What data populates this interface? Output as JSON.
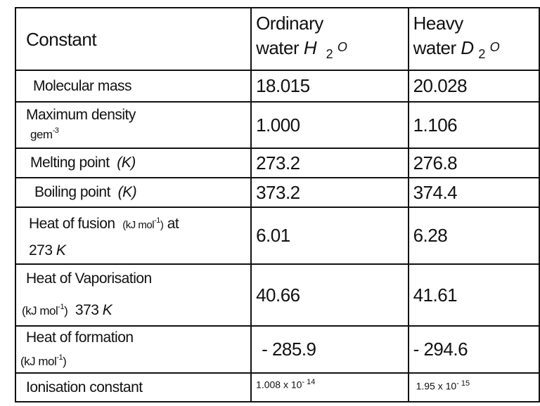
{
  "header": {
    "constant": "Constant",
    "ordinary_line1": "Ordinary",
    "ordinary_line2": "water",
    "ordinary_symbol": "H",
    "ordinary_sub": "2",
    "ordinary_o": "O",
    "heavy_line1": "Heavy",
    "heavy_line2": "water",
    "heavy_symbol": "D",
    "heavy_sub": "2",
    "heavy_o": "O"
  },
  "rows": [
    {
      "label": "Molecular mass",
      "h2o": "18.015",
      "d2o": "20.028"
    },
    {
      "label": "Maximum density",
      "unit": "gem",
      "unit_exp": "-3",
      "h2o": "1.000",
      "d2o": "1.106"
    },
    {
      "label": "Melting point",
      "unit": "(K)",
      "h2o": "273.2",
      "d2o": "276.8"
    },
    {
      "label": "Boiling point",
      "unit": "(K)",
      "h2o": "373.2",
      "d2o": "374.4"
    },
    {
      "label": "Heat of fusion",
      "unit": "(kJ mol",
      "unit_exp": "-1",
      "unit_close": ")",
      "suffix": "at",
      "line2": "273",
      "line2_unit": "K",
      "h2o": "6.01",
      "d2o": "6.28"
    },
    {
      "label": "Heat of Vaporisation",
      "unit": "(kJ mol",
      "unit_exp": "-1",
      "unit_close": ")",
      "line2": "373",
      "line2_unit": "K",
      "h2o": "40.66",
      "d2o": "41.61"
    },
    {
      "label": "Heat of  formation",
      "unit": "(kJ mol",
      "unit_exp": "-1",
      "unit_close": ")",
      "h2o": "- 285.9",
      "d2o": "- 294.6"
    },
    {
      "label": "Ionisation constant",
      "h2o": "1.008 x 10",
      "h2o_exp": "- 14",
      "d2o": "1.95 x 10",
      "d2o_exp": "- 15"
    }
  ]
}
